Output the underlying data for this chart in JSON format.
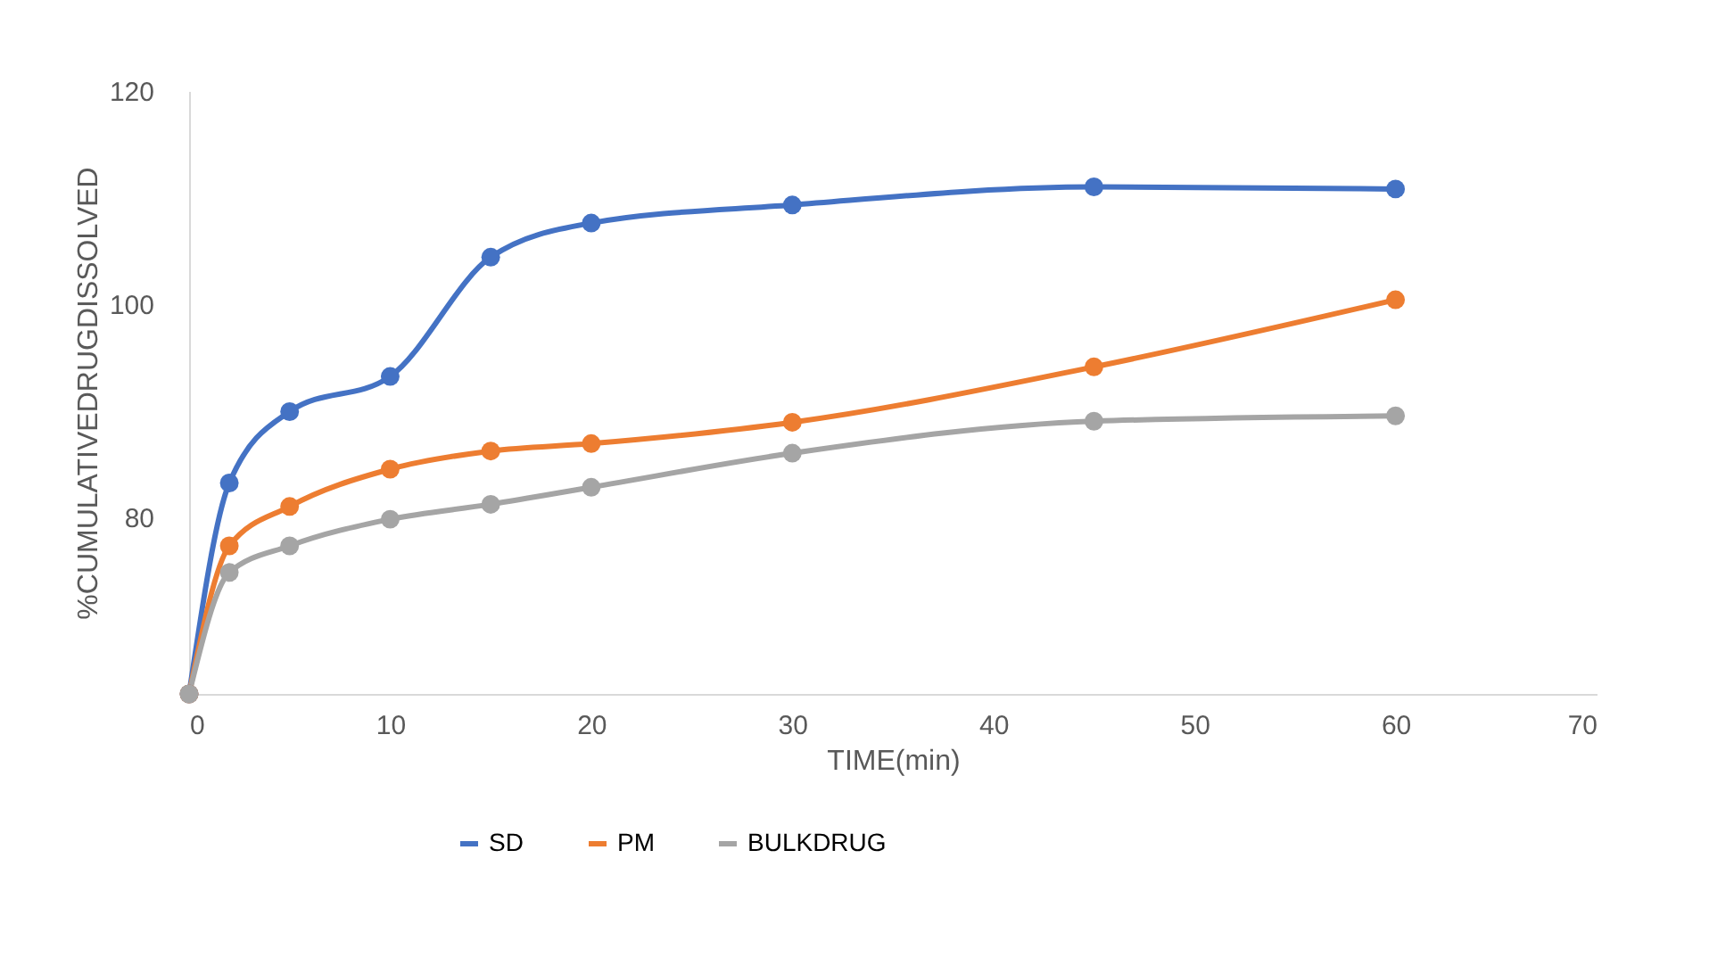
{
  "chart_data": {
    "type": "line",
    "xlabel": "TIME(min)",
    "ylabel": "%CUMULATIVEDRUGDISSOLVED",
    "x": [
      0,
      2,
      5,
      10,
      15,
      20,
      30,
      45,
      60
    ],
    "series": [
      {
        "name": "SD",
        "color": "#4472c4",
        "values": [
          63.4,
          83.2,
          89.9,
          93.2,
          104.4,
          107.6,
          109.3,
          111,
          110.8
        ]
      },
      {
        "name": "PM",
        "color": "#ed7d31",
        "values": [
          63.4,
          77.3,
          81,
          84.5,
          86.2,
          86.9,
          88.9,
          94.1,
          100.4
        ]
      },
      {
        "name": "BULKDRUG",
        "color": "#a5a5a5",
        "values": [
          63.4,
          74.8,
          77.3,
          79.8,
          81.2,
          82.8,
          86,
          89,
          89.5
        ]
      }
    ],
    "xlim": [
      0,
      70
    ],
    "xticks": [
      0,
      10,
      20,
      30,
      40,
      50,
      60,
      70
    ],
    "ylim": [
      63.4,
      120
    ],
    "yticks": [
      80,
      100,
      120
    ],
    "grid": false,
    "legend": "bottom",
    "marker": "circle",
    "line_style": "solid"
  }
}
